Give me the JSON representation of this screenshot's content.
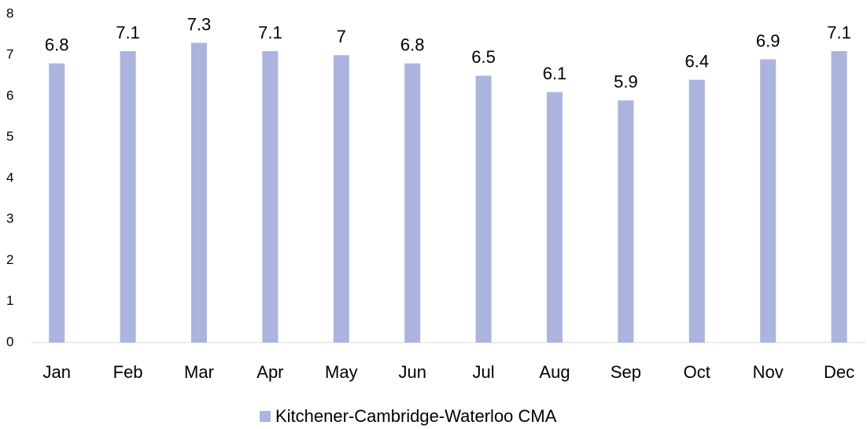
{
  "chart_data": {
    "type": "bar",
    "categories": [
      "Jan",
      "Feb",
      "Mar",
      "Apr",
      "May",
      "Jun",
      "Jul",
      "Aug",
      "Sep",
      "Oct",
      "Nov",
      "Dec"
    ],
    "series": [
      {
        "name": "Kitchener-Cambridge-Waterloo CMA",
        "color": "#aab4de",
        "values": [
          6.8,
          7.1,
          7.3,
          7.1,
          7,
          6.8,
          6.5,
          6.1,
          5.9,
          6.4,
          6.9,
          7.1
        ]
      }
    ],
    "ylim": [
      0,
      8
    ],
    "yticks": [
      0,
      1,
      2,
      3,
      4,
      5,
      6,
      7,
      8
    ],
    "grid": false,
    "legend": "bottom",
    "data_labels": true
  }
}
